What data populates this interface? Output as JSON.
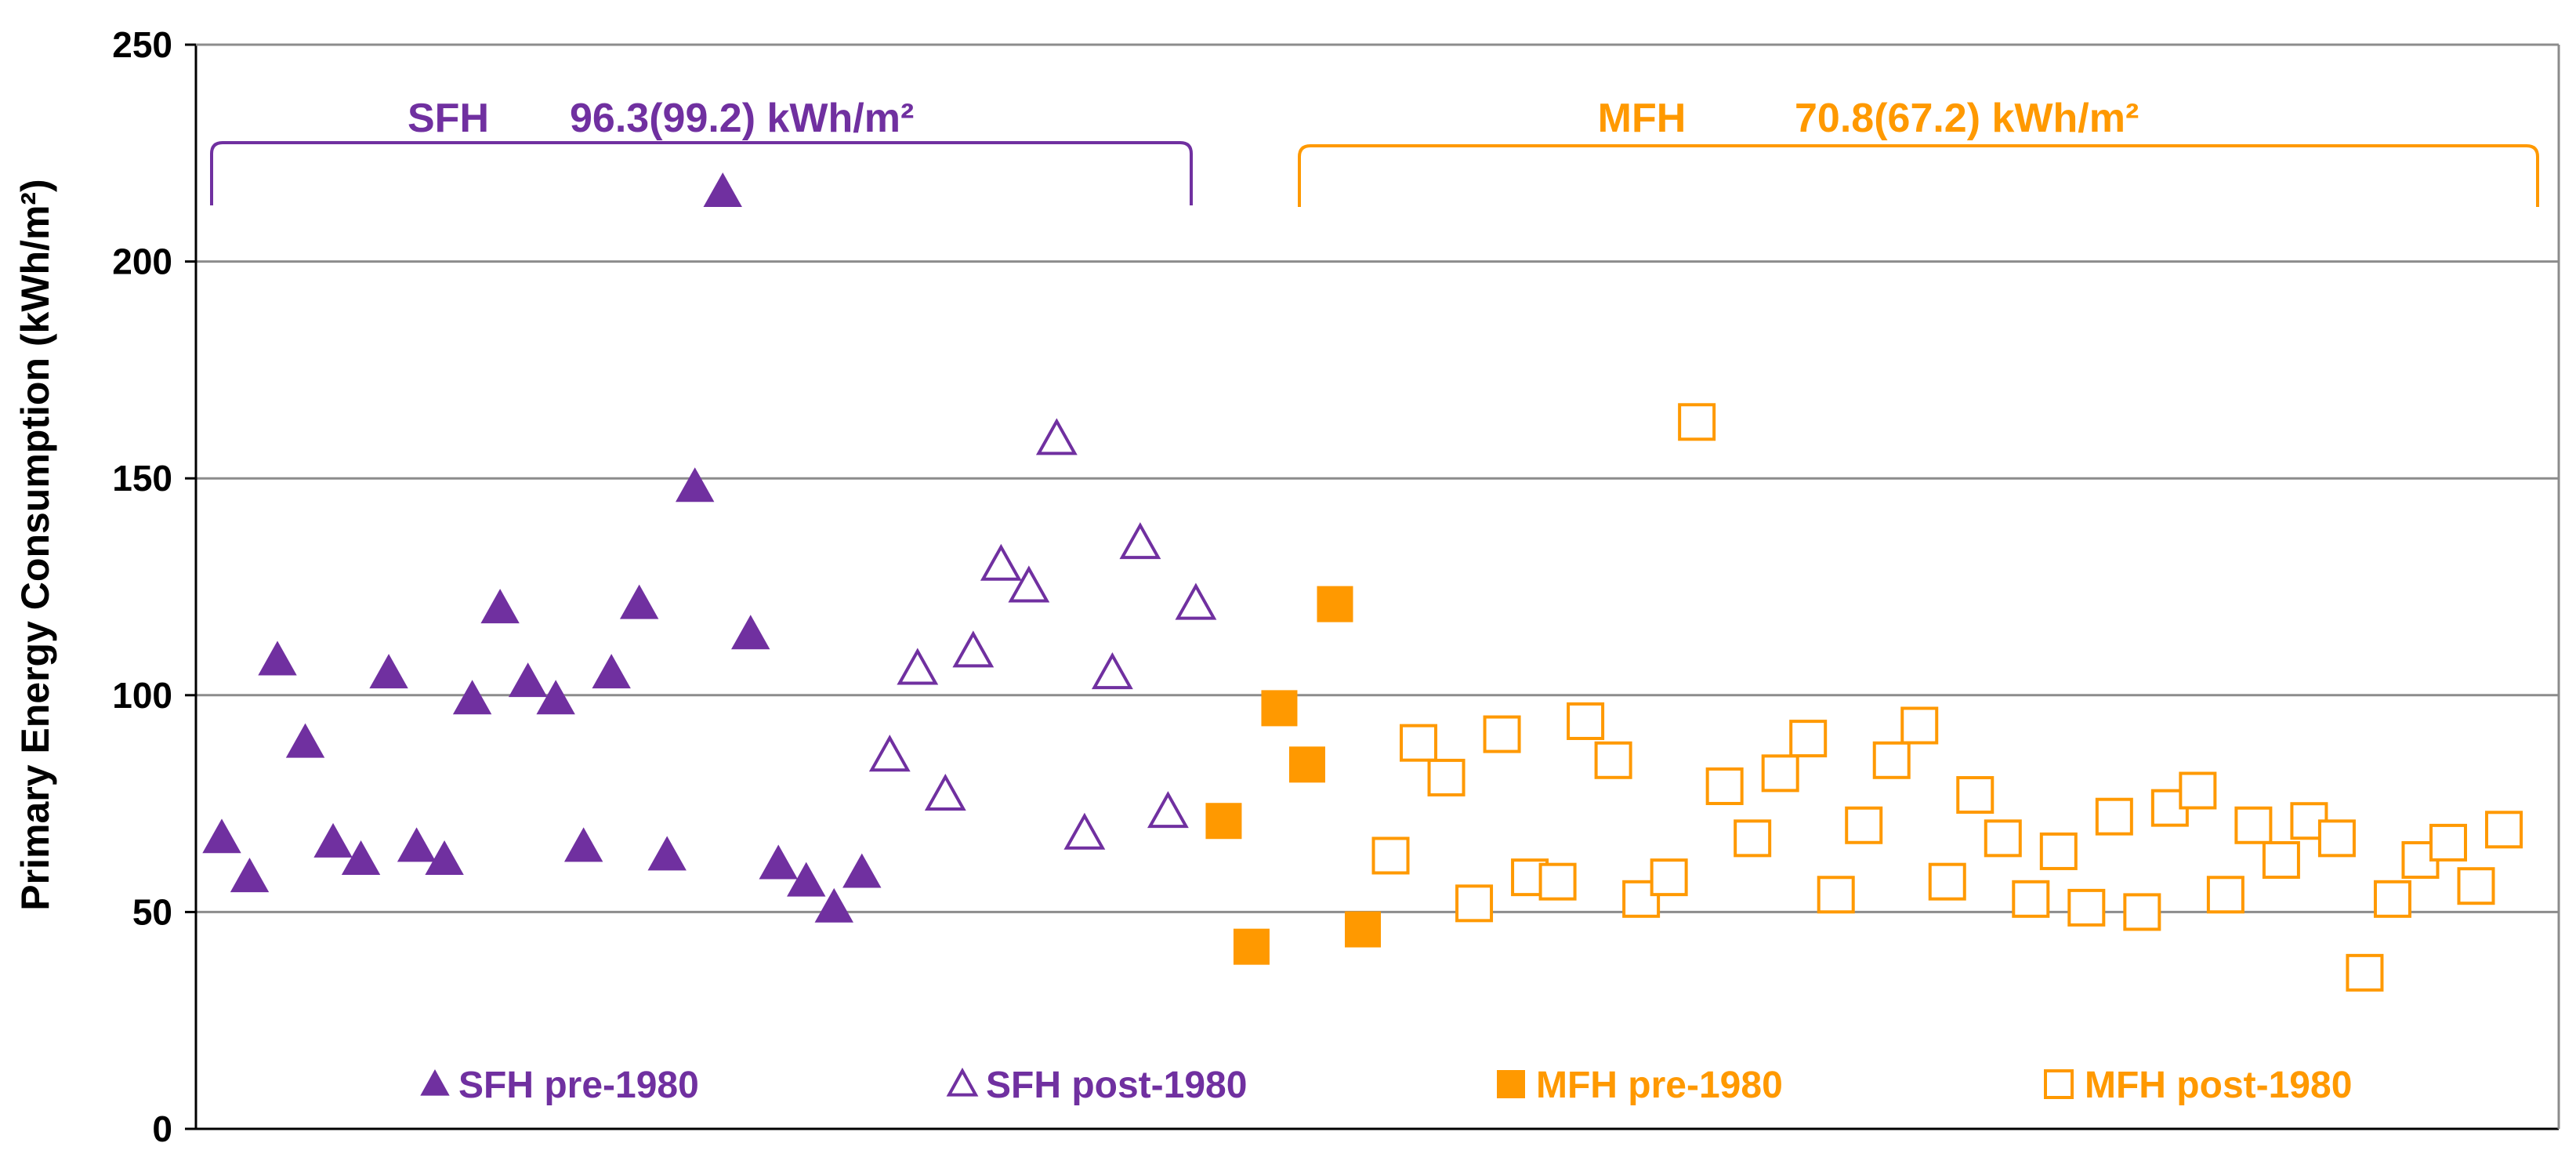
{
  "chart_data": {
    "type": "scatter",
    "ylabel": "Primary Energy Consumption (kWh/m²)",
    "ylim": [
      0,
      250
    ],
    "yticks": [
      0,
      50,
      100,
      150,
      200,
      250
    ],
    "grid": true,
    "colors": {
      "SFH": "#7030A0",
      "MFH": "#FF9900"
    },
    "groups": [
      {
        "name": "SFH",
        "label": "SFH",
        "value_text": "96.3(99.2) kWh/m²",
        "color": "#7030A0"
      },
      {
        "name": "MFH",
        "label": "MFH",
        "value_text": "70.8(67.2) kWh/m²",
        "color": "#FF9900"
      }
    ],
    "series": [
      {
        "name": "SFH pre-1980",
        "marker": "triangle",
        "filled": true,
        "color": "#7030A0",
        "points": [
          [
            1,
            67
          ],
          [
            2,
            58
          ],
          [
            3,
            108
          ],
          [
            4,
            89
          ],
          [
            5,
            66
          ],
          [
            6,
            62
          ],
          [
            7,
            105
          ],
          [
            8,
            65
          ],
          [
            9,
            62
          ],
          [
            10,
            99
          ],
          [
            11,
            120
          ],
          [
            12,
            103
          ],
          [
            13,
            99
          ],
          [
            14,
            65
          ],
          [
            15,
            105
          ],
          [
            16,
            121
          ],
          [
            17,
            63
          ],
          [
            18,
            148
          ],
          [
            19,
            216
          ],
          [
            20,
            114
          ],
          [
            21,
            61
          ],
          [
            22,
            57
          ],
          [
            23,
            51
          ],
          [
            24,
            59
          ]
        ]
      },
      {
        "name": "SFH post-1980",
        "marker": "triangle",
        "filled": false,
        "color": "#7030A0",
        "points": [
          [
            25,
            86
          ],
          [
            26,
            106
          ],
          [
            27,
            77
          ],
          [
            28,
            110
          ],
          [
            29,
            130
          ],
          [
            30,
            125
          ],
          [
            31,
            159
          ],
          [
            32,
            68
          ],
          [
            33,
            105
          ],
          [
            34,
            135
          ],
          [
            35,
            73
          ],
          [
            36,
            121
          ]
        ]
      },
      {
        "name": "MFH pre-1980",
        "marker": "square",
        "filled": true,
        "color": "#FF9900",
        "points": [
          [
            37,
            71
          ],
          [
            38,
            42
          ],
          [
            39,
            97
          ],
          [
            40,
            84
          ],
          [
            41,
            121
          ],
          [
            42,
            46
          ]
        ]
      },
      {
        "name": "MFH post-1980",
        "marker": "square",
        "filled": false,
        "color": "#FF9900",
        "points": [
          [
            43,
            63
          ],
          [
            44,
            89
          ],
          [
            45,
            81
          ],
          [
            46,
            52
          ],
          [
            47,
            91
          ],
          [
            48,
            58
          ],
          [
            49,
            57
          ],
          [
            50,
            94
          ],
          [
            51,
            85
          ],
          [
            52,
            53
          ],
          [
            53,
            58
          ],
          [
            54,
            163
          ],
          [
            55,
            79
          ],
          [
            56,
            67
          ],
          [
            57,
            82
          ],
          [
            58,
            90
          ],
          [
            59,
            54
          ],
          [
            60,
            70
          ],
          [
            61,
            85
          ],
          [
            62,
            93
          ],
          [
            63,
            57
          ],
          [
            64,
            77
          ],
          [
            65,
            67
          ],
          [
            66,
            53
          ],
          [
            67,
            64
          ],
          [
            68,
            51
          ],
          [
            69,
            72
          ],
          [
            70,
            50
          ],
          [
            71,
            74
          ],
          [
            72,
            78
          ],
          [
            73,
            54
          ],
          [
            74,
            70
          ],
          [
            75,
            62
          ],
          [
            76,
            71
          ],
          [
            77,
            67
          ],
          [
            78,
            36
          ],
          [
            79,
            53
          ],
          [
            80,
            62
          ],
          [
            81,
            66
          ],
          [
            82,
            56
          ],
          [
            83,
            69
          ]
        ]
      }
    ]
  }
}
